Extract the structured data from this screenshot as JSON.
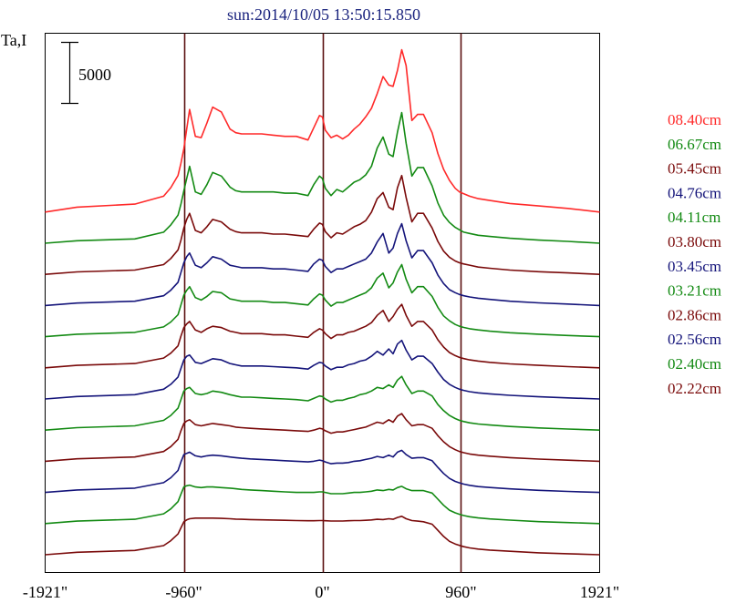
{
  "title": "sun:2014/10/05 13:50:15.850",
  "ylabel": "Ta,I",
  "scale_bar_label": "5000",
  "colors": {
    "title": "#1a237e",
    "red": "#ff2a2a",
    "green": "#138a13",
    "darkred": "#7a0a0a",
    "blue": "#14147a",
    "axis": "#000000",
    "vline": "#5a1010"
  },
  "chart_data": {
    "type": "line",
    "title": "sun:2014/10/05 13:50:15.850",
    "xlabel": "",
    "ylabel": "Ta,I",
    "x_unit": "arcsec",
    "xlim": [
      -1921,
      1921
    ],
    "x_ticks": [
      -1921,
      -960,
      0,
      960,
      1921
    ],
    "x_tick_labels": [
      "-1921\"",
      "-960\"",
      "0\"",
      "960\"",
      "1921\""
    ],
    "vertical_lines": [
      -960,
      0,
      960
    ],
    "scale_bar": 5000,
    "stacked_offsets": true,
    "legend_position": "right",
    "grid": false,
    "x": [
      -1921,
      -1700,
      -1300,
      -1100,
      -1050,
      -1000,
      -980,
      -960,
      -940,
      -920,
      -880,
      -840,
      -800,
      -760,
      -700,
      -640,
      -600,
      -560,
      -500,
      -420,
      -340,
      -260,
      -180,
      -100,
      -60,
      -20,
      0,
      20,
      60,
      100,
      140,
      180,
      220,
      260,
      300,
      340,
      380,
      420,
      460,
      490,
      520,
      550,
      580,
      620,
      660,
      700,
      760,
      800,
      840,
      880,
      920,
      950,
      980,
      1020,
      1080,
      1160,
      1300,
      1500,
      1700,
      1921
    ],
    "series": [
      {
        "name": "08.40cm",
        "color": "red",
        "values": [
          0,
          400,
          650,
          1300,
          2000,
          3000,
          4000,
          5200,
          6800,
          8400,
          6200,
          6100,
          7300,
          8600,
          8200,
          6800,
          6500,
          6400,
          6400,
          6400,
          6300,
          6200,
          6200,
          5900,
          6900,
          7900,
          7800,
          6700,
          6100,
          6300,
          6000,
          6300,
          6800,
          7200,
          7800,
          8500,
          9700,
          11100,
          10400,
          10300,
          11600,
          13300,
          12000,
          7500,
          8000,
          8000,
          6500,
          4800,
          3500,
          2600,
          1950,
          1650,
          1500,
          1300,
          1100,
          950,
          700,
          500,
          300,
          0
        ]
      },
      {
        "name": "06.67cm",
        "color": "green",
        "values": [
          0,
          200,
          350,
          900,
          1500,
          2300,
          3200,
          4300,
          5300,
          6300,
          4200,
          4000,
          4800,
          5800,
          5500,
          4600,
          4300,
          4200,
          4200,
          4200,
          4200,
          4100,
          4100,
          3900,
          4800,
          5500,
          5300,
          4500,
          3900,
          4400,
          4200,
          4600,
          5000,
          5200,
          5600,
          6300,
          7800,
          8700,
          7300,
          7100,
          9100,
          10700,
          8200,
          5500,
          6200,
          6200,
          4700,
          3300,
          2300,
          1700,
          1300,
          1100,
          900,
          800,
          650,
          550,
          400,
          250,
          150,
          0
        ]
      },
      {
        "name": "05.45cm",
        "color": "darkred",
        "values": [
          0,
          200,
          350,
          800,
          1300,
          2000,
          2800,
          3800,
          4500,
          5000,
          3600,
          3400,
          3900,
          4500,
          4300,
          3700,
          3500,
          3400,
          3400,
          3400,
          3300,
          3300,
          3200,
          3100,
          3700,
          4200,
          4100,
          3500,
          3000,
          3400,
          3300,
          3600,
          3900,
          4100,
          4400,
          5100,
          6200,
          6700,
          5500,
          5300,
          7100,
          8100,
          6300,
          4300,
          5000,
          5000,
          3800,
          2700,
          1900,
          1400,
          1100,
          950,
          850,
          750,
          600,
          500,
          350,
          220,
          120,
          0
        ]
      },
      {
        "name": "04.76cm",
        "color": "blue",
        "values": [
          0,
          200,
          350,
          800,
          1250,
          1900,
          2700,
          3500,
          4000,
          4300,
          3300,
          3100,
          3500,
          4000,
          3800,
          3300,
          3200,
          3100,
          3100,
          3100,
          3000,
          3000,
          2900,
          2800,
          3400,
          3800,
          3700,
          3200,
          2700,
          3000,
          3000,
          3200,
          3400,
          3600,
          3800,
          4300,
          5200,
          5900,
          4300,
          4700,
          5900,
          6700,
          5300,
          3900,
          4500,
          4500,
          3500,
          2500,
          1800,
          1300,
          1050,
          900,
          800,
          700,
          600,
          500,
          350,
          220,
          120,
          0
        ]
      },
      {
        "name": "04.11cm",
        "color": "green",
        "values": [
          0,
          200,
          350,
          800,
          1200,
          1800,
          2600,
          3400,
          3800,
          4100,
          3200,
          3000,
          3300,
          3700,
          3600,
          3100,
          3000,
          2900,
          2900,
          2900,
          2800,
          2800,
          2700,
          2600,
          3100,
          3500,
          3400,
          3000,
          2500,
          2800,
          2800,
          3000,
          3200,
          3400,
          3600,
          4000,
          4800,
          5200,
          4000,
          4400,
          5300,
          5900,
          4700,
          3600,
          4100,
          4100,
          3300,
          2400,
          1700,
          1300,
          1000,
          850,
          750,
          650,
          550,
          450,
          320,
          200,
          100,
          0
        ]
      },
      {
        "name": "03.80cm",
        "color": "darkred",
        "values": [
          0,
          200,
          350,
          800,
          1200,
          1800,
          2600,
          3300,
          3600,
          3800,
          3100,
          2900,
          3200,
          3400,
          3300,
          3000,
          2900,
          2800,
          2800,
          2800,
          2700,
          2700,
          2600,
          2500,
          2900,
          3200,
          3100,
          2800,
          2400,
          2700,
          2700,
          2900,
          3000,
          3200,
          3400,
          3700,
          4300,
          4700,
          3800,
          4200,
          4800,
          5200,
          4300,
          3400,
          3800,
          3800,
          3100,
          2300,
          1700,
          1250,
          1000,
          850,
          750,
          650,
          550,
          450,
          320,
          200,
          100,
          0
        ]
      },
      {
        "name": "03.45cm",
        "color": "blue",
        "values": [
          0,
          200,
          350,
          800,
          1200,
          1800,
          2500,
          3200,
          3500,
          3600,
          3000,
          2900,
          3100,
          3300,
          3200,
          2900,
          2800,
          2700,
          2700,
          2700,
          2650,
          2600,
          2550,
          2450,
          2750,
          3000,
          2950,
          2700,
          2400,
          2600,
          2600,
          2800,
          2900,
          3100,
          3200,
          3500,
          3900,
          3600,
          4100,
          3700,
          4500,
          4800,
          4000,
          3200,
          3500,
          3500,
          2900,
          2200,
          1600,
          1200,
          950,
          800,
          700,
          600,
          500,
          420,
          300,
          180,
          90,
          0
        ]
      },
      {
        "name": "03.21cm",
        "color": "green",
        "values": [
          0,
          200,
          350,
          800,
          1200,
          1800,
          2500,
          3200,
          3400,
          3500,
          3000,
          2900,
          3000,
          3200,
          3100,
          2900,
          2800,
          2700,
          2700,
          2650,
          2600,
          2550,
          2500,
          2400,
          2600,
          2800,
          2750,
          2550,
          2300,
          2450,
          2450,
          2600,
          2700,
          2900,
          3000,
          3200,
          3500,
          3400,
          3700,
          3500,
          4100,
          4400,
          3700,
          3000,
          3200,
          3200,
          2800,
          2100,
          1600,
          1200,
          950,
          800,
          700,
          600,
          500,
          420,
          300,
          180,
          90,
          0
        ]
      },
      {
        "name": "02.86cm",
        "color": "darkred",
        "values": [
          0,
          200,
          350,
          800,
          1200,
          1800,
          2500,
          3100,
          3300,
          3400,
          3000,
          2900,
          3000,
          3100,
          3000,
          2900,
          2800,
          2750,
          2700,
          2650,
          2600,
          2550,
          2500,
          2450,
          2550,
          2700,
          2650,
          2500,
          2300,
          2400,
          2400,
          2500,
          2600,
          2700,
          2800,
          3000,
          3200,
          3100,
          3400,
          3200,
          3700,
          3900,
          3400,
          2900,
          3000,
          3000,
          2700,
          2100,
          1600,
          1200,
          950,
          800,
          700,
          600,
          500,
          420,
          300,
          180,
          90,
          0
        ]
      },
      {
        "name": "02.56cm",
        "color": "blue",
        "values": [
          0,
          200,
          350,
          800,
          1200,
          1800,
          2500,
          3100,
          3200,
          3300,
          3000,
          2900,
          3000,
          3050,
          3000,
          2900,
          2850,
          2800,
          2750,
          2700,
          2650,
          2600,
          2550,
          2500,
          2550,
          2650,
          2600,
          2500,
          2350,
          2400,
          2400,
          2450,
          2550,
          2600,
          2700,
          2800,
          2950,
          2850,
          3050,
          2900,
          3300,
          3450,
          3100,
          2800,
          2850,
          2850,
          2600,
          2050,
          1550,
          1150,
          900,
          780,
          680,
          580,
          480,
          400,
          290,
          170,
          80,
          0
        ]
      },
      {
        "name": "02.40cm",
        "color": "green",
        "values": [
          0,
          200,
          350,
          800,
          1200,
          1800,
          2400,
          3000,
          3100,
          3150,
          3000,
          2950,
          3000,
          3000,
          2950,
          2900,
          2850,
          2800,
          2750,
          2700,
          2650,
          2600,
          2550,
          2550,
          2550,
          2600,
          2600,
          2550,
          2450,
          2450,
          2450,
          2500,
          2550,
          2550,
          2600,
          2650,
          2750,
          2700,
          2800,
          2750,
          2950,
          3050,
          2850,
          2700,
          2700,
          2700,
          2500,
          2000,
          1500,
          1100,
          880,
          760,
          660,
          560,
          460,
          380,
          280,
          160,
          80,
          0
        ]
      },
      {
        "name": "02.22cm",
        "color": "darkred",
        "values": [
          0,
          200,
          350,
          750,
          1150,
          1700,
          2200,
          2700,
          2850,
          2950,
          3000,
          3000,
          3000,
          3000,
          2980,
          2950,
          2920,
          2900,
          2880,
          2860,
          2840,
          2820,
          2800,
          2780,
          2780,
          2800,
          2800,
          2780,
          2760,
          2760,
          2760,
          2780,
          2800,
          2800,
          2820,
          2850,
          2900,
          2880,
          2950,
          2900,
          3050,
          3150,
          2950,
          2800,
          2750,
          2700,
          2500,
          2000,
          1500,
          1100,
          880,
          760,
          660,
          560,
          460,
          380,
          280,
          160,
          80,
          0
        ]
      }
    ]
  }
}
